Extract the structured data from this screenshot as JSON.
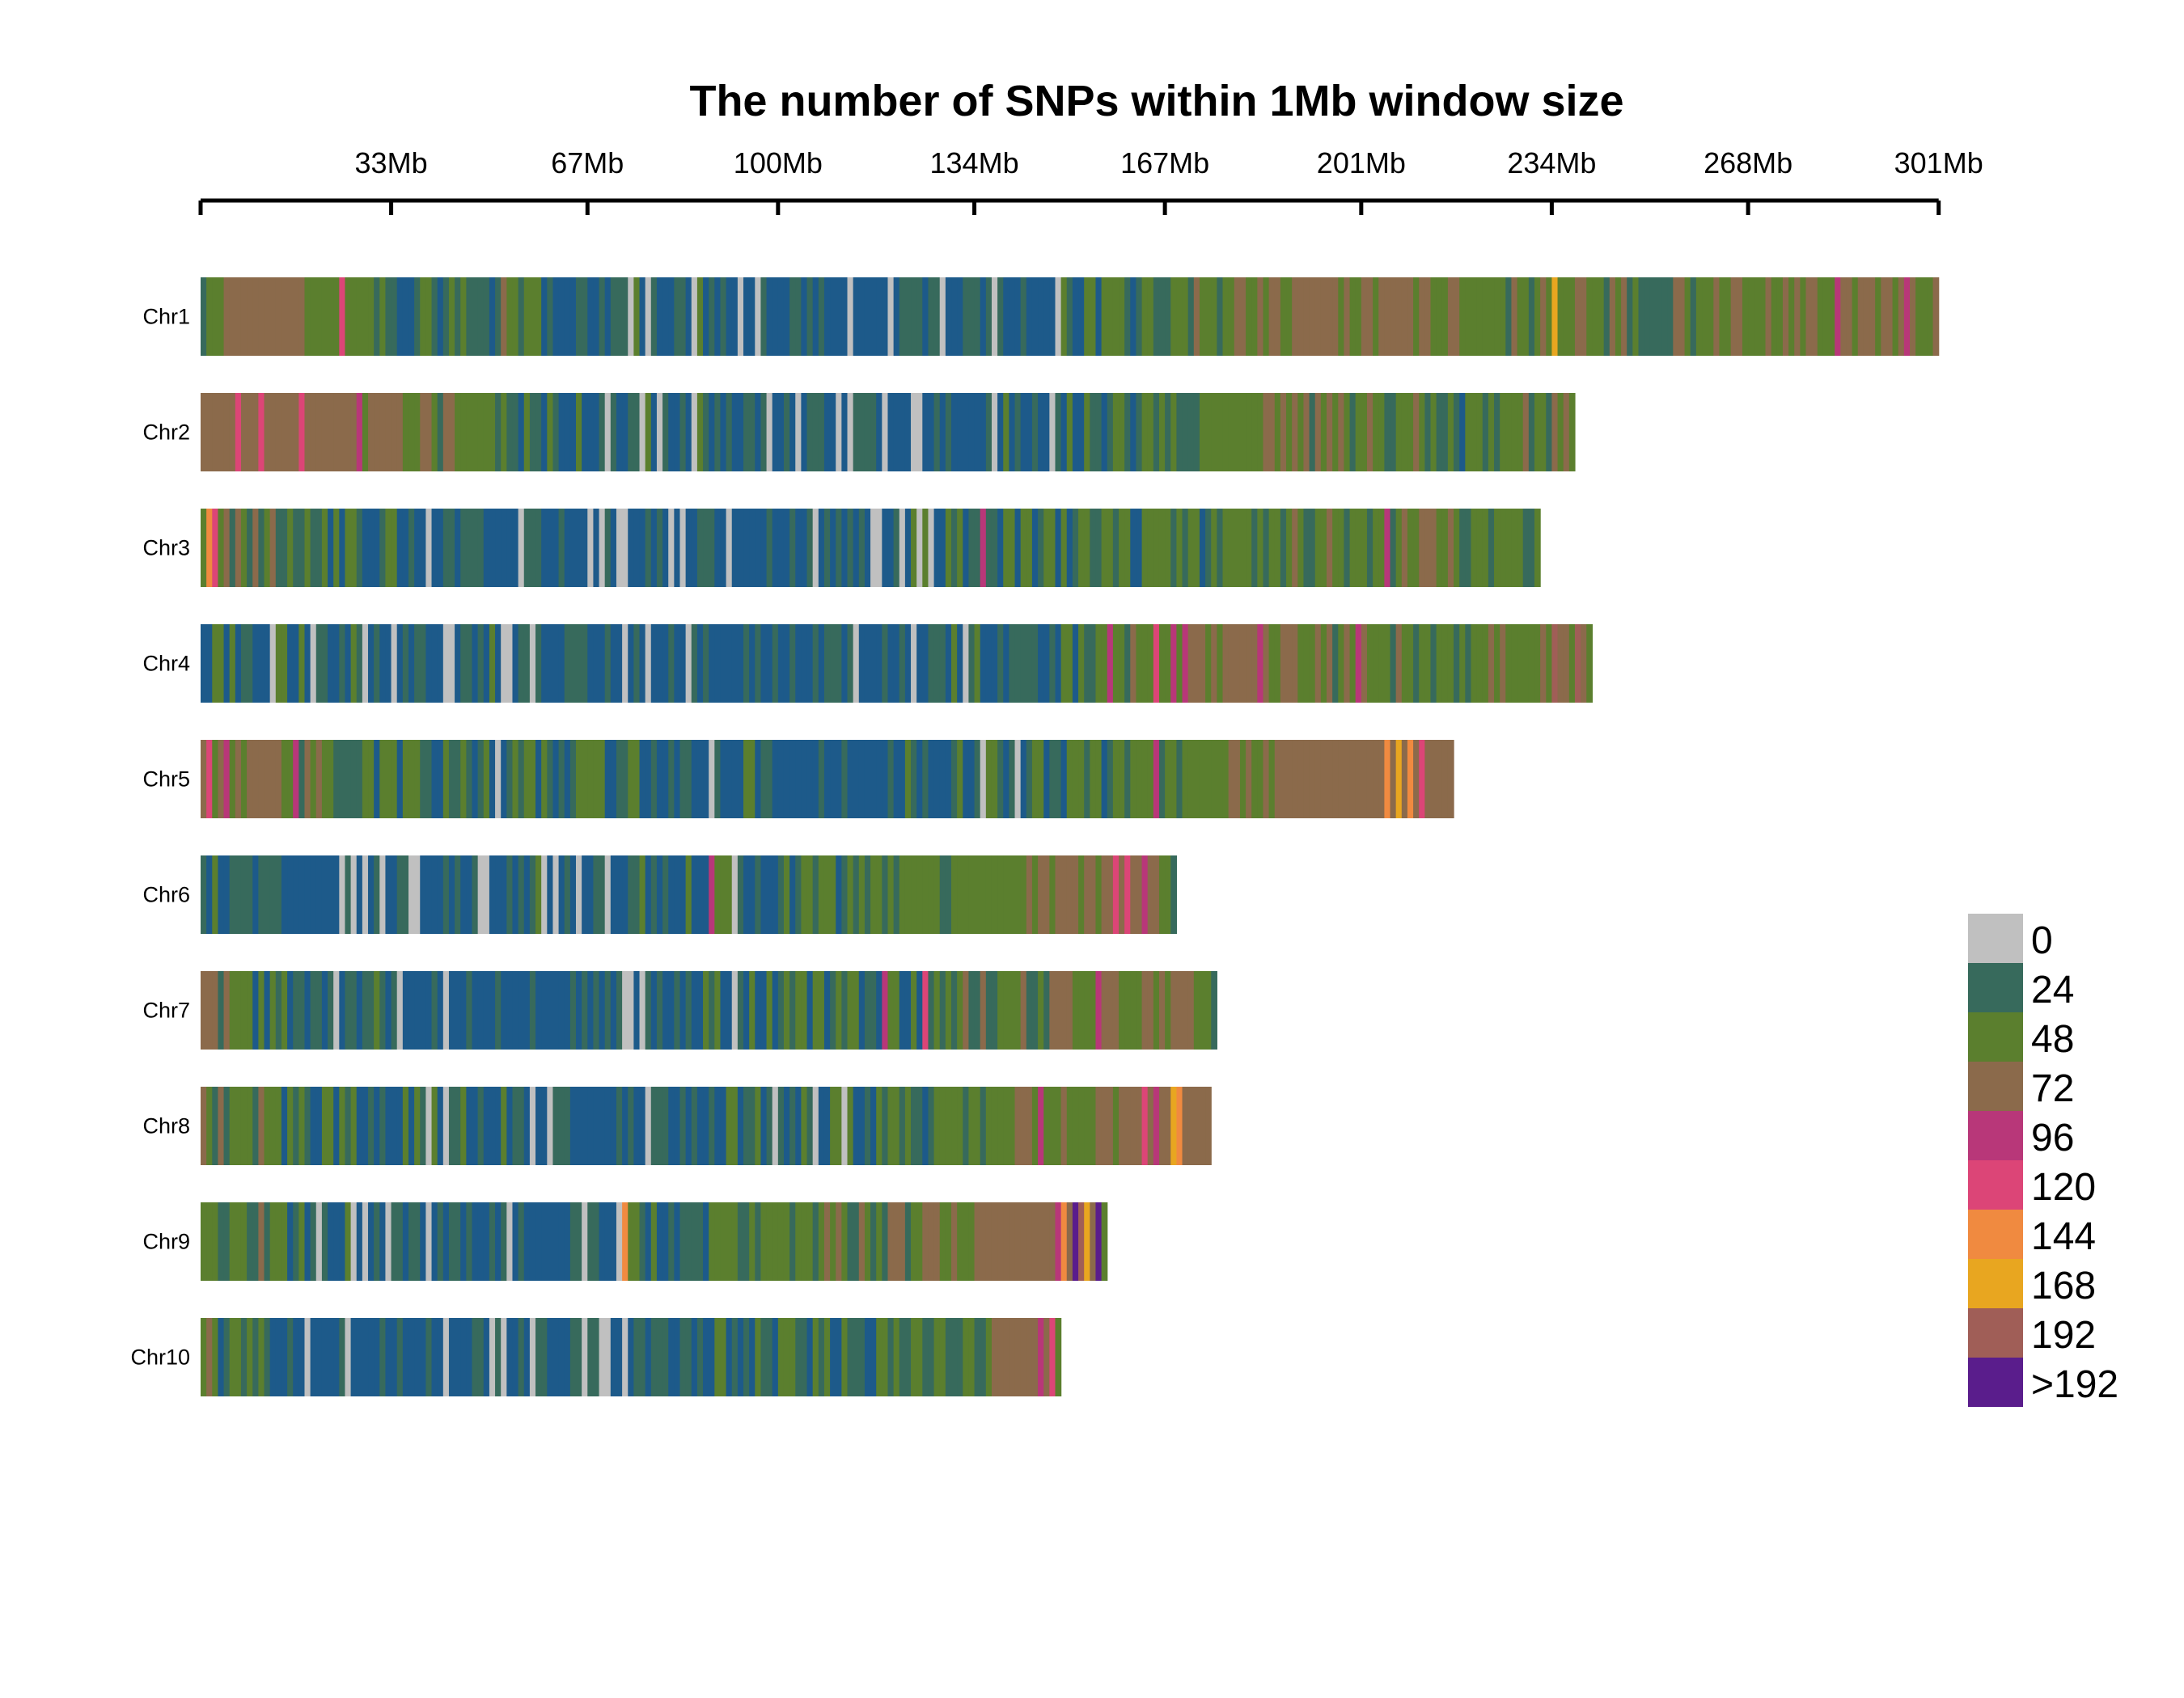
{
  "chart_data": {
    "type": "heatmap",
    "title": "The number of SNPs within 1Mb window size",
    "xlabel": "",
    "ylabel": "",
    "x_unit": "Mb",
    "xlim": [
      0,
      301
    ],
    "x_ticks": [
      {
        "value": 0,
        "label": ""
      },
      {
        "value": 33,
        "label": "33Mb"
      },
      {
        "value": 67,
        "label": "67Mb"
      },
      {
        "value": 100,
        "label": "100Mb"
      },
      {
        "value": 134,
        "label": "134Mb"
      },
      {
        "value": 167,
        "label": "167Mb"
      },
      {
        "value": 201,
        "label": "201Mb"
      },
      {
        "value": 234,
        "label": "234Mb"
      },
      {
        "value": 268,
        "label": "268Mb"
      },
      {
        "value": 301,
        "label": "301Mb"
      }
    ],
    "window_size_mb": 1,
    "legend": {
      "position": "right",
      "bins": [
        {
          "label": "0",
          "color": "#c0c0c0"
        },
        {
          "label": "24",
          "color": "#376a5c"
        },
        {
          "label": "48",
          "color": "#5b7f2e"
        },
        {
          "label": "72",
          "color": "#8b6a4b"
        },
        {
          "label": "96",
          "color": "#b83779"
        },
        {
          "label": "120",
          "color": "#dc4577"
        },
        {
          "label": "144",
          "color": "#f08a40"
        },
        {
          "label": "168",
          "color": "#e8a620"
        },
        {
          "label": "192",
          "color": "#a05e57"
        },
        {
          "label": ">192",
          "color": "#5a1d8c"
        }
      ],
      "low_density_color": "#1d5a8a"
    },
    "chromosomes": [
      {
        "name": "Chr1",
        "length_mb": 301,
        "profile": [
          [
            0,
            1
          ],
          [
            5,
            3
          ],
          [
            12,
            3.5
          ],
          [
            20,
            2.5
          ],
          [
            30,
            1.5
          ],
          [
            45,
            1
          ],
          [
            60,
            1
          ],
          [
            75,
            0.8
          ],
          [
            95,
            0.6
          ],
          [
            115,
            0.5
          ],
          [
            145,
            0.6
          ],
          [
            160,
            1.2
          ],
          [
            175,
            2
          ],
          [
            195,
            3
          ],
          [
            215,
            2.5
          ],
          [
            235,
            2
          ],
          [
            255,
            2
          ],
          [
            275,
            2.5
          ],
          [
            290,
            3
          ],
          [
            301,
            2
          ]
        ],
        "hot": [
          [
            24,
            5
          ],
          [
            52,
            3
          ],
          [
            234,
            7
          ],
          [
            283,
            4
          ],
          [
            295,
            4
          ]
        ]
      },
      {
        "name": "Chr2",
        "length_mb": 238,
        "profile": [
          [
            0,
            4
          ],
          [
            8,
            5
          ],
          [
            20,
            4
          ],
          [
            30,
            3
          ],
          [
            45,
            2
          ],
          [
            60,
            1
          ],
          [
            80,
            0.7
          ],
          [
            95,
            0.5
          ],
          [
            105,
            0.3
          ],
          [
            120,
            0.5
          ],
          [
            135,
            0.6
          ],
          [
            150,
            1
          ],
          [
            165,
            1.6
          ],
          [
            180,
            2
          ],
          [
            200,
            2
          ],
          [
            220,
            1.8
          ],
          [
            238,
            2
          ]
        ],
        "hot": [
          [
            6,
            5
          ],
          [
            10,
            5
          ],
          [
            17,
            5
          ],
          [
            27,
            4
          ],
          [
            185,
            3
          ],
          [
            193,
            3
          ]
        ]
      },
      {
        "name": "Chr3",
        "length_mb": 232,
        "profile": [
          [
            0,
            2
          ],
          [
            10,
            2
          ],
          [
            20,
            1.5
          ],
          [
            30,
            1
          ],
          [
            45,
            0.6
          ],
          [
            60,
            0.5
          ],
          [
            75,
            0.3
          ],
          [
            90,
            0.4
          ],
          [
            105,
            0.4
          ],
          [
            115,
            0.6
          ],
          [
            130,
            1
          ],
          [
            150,
            1.2
          ],
          [
            170,
            1.5
          ],
          [
            190,
            1.8
          ],
          [
            210,
            2
          ],
          [
            232,
            1.8
          ]
        ],
        "hot": [
          [
            1,
            6
          ],
          [
            2,
            5
          ],
          [
            135,
            4
          ],
          [
            205,
            4
          ]
        ]
      },
      {
        "name": "Chr4",
        "length_mb": 241,
        "profile": [
          [
            0,
            1
          ],
          [
            20,
            0.9
          ],
          [
            40,
            0.7
          ],
          [
            60,
            0.5
          ],
          [
            80,
            0.5
          ],
          [
            100,
            0.4
          ],
          [
            115,
            0.6
          ],
          [
            130,
            0.7
          ],
          [
            145,
            1
          ],
          [
            155,
            1.5
          ],
          [
            165,
            2.5
          ],
          [
            180,
            3
          ],
          [
            190,
            2.5
          ],
          [
            205,
            2
          ],
          [
            225,
            2
          ],
          [
            241,
            3
          ]
        ],
        "hot": [
          [
            157,
            4
          ],
          [
            165,
            5
          ],
          [
            168,
            4
          ],
          [
            170,
            4
          ],
          [
            183,
            4
          ],
          [
            200,
            4
          ],
          [
            234,
            8
          ],
          [
            238,
            8
          ]
        ]
      },
      {
        "name": "Chr5",
        "length_mb": 217,
        "profile": [
          [
            0,
            3
          ],
          [
            10,
            3
          ],
          [
            20,
            2
          ],
          [
            35,
            1.5
          ],
          [
            55,
            1
          ],
          [
            75,
            0.8
          ],
          [
            95,
            0.7
          ],
          [
            115,
            0.6
          ],
          [
            130,
            0.8
          ],
          [
            150,
            1
          ],
          [
            165,
            1.5
          ],
          [
            180,
            2
          ],
          [
            195,
            3
          ],
          [
            200,
            4
          ],
          [
            205,
            5
          ],
          [
            210,
            5
          ],
          [
            217,
            4
          ]
        ],
        "hot": [
          [
            1,
            5
          ],
          [
            4,
            4
          ],
          [
            16,
            4
          ],
          [
            165,
            4
          ],
          [
            205,
            6
          ],
          [
            207,
            7
          ],
          [
            209,
            6
          ],
          [
            211,
            5
          ]
        ]
      },
      {
        "name": "Chr6",
        "length_mb": 169,
        "profile": [
          [
            0,
            0.8
          ],
          [
            20,
            0.3
          ],
          [
            40,
            0.5
          ],
          [
            60,
            0.6
          ],
          [
            80,
            0.8
          ],
          [
            100,
            1.2
          ],
          [
            120,
            1.8
          ],
          [
            140,
            2.5
          ],
          [
            155,
            3.2
          ],
          [
            165,
            2.5
          ],
          [
            169,
            1.5
          ]
        ],
        "hot": [
          [
            88,
            4
          ],
          [
            158,
            5
          ],
          [
            160,
            5
          ],
          [
            163,
            4
          ]
        ]
      },
      {
        "name": "Chr7",
        "length_mb": 176,
        "profile": [
          [
            0,
            2
          ],
          [
            10,
            1.5
          ],
          [
            25,
            1
          ],
          [
            45,
            0.5
          ],
          [
            65,
            0.4
          ],
          [
            75,
            0.4
          ],
          [
            90,
            0.8
          ],
          [
            110,
            1.2
          ],
          [
            125,
            1.5
          ],
          [
            140,
            2
          ],
          [
            155,
            2.5
          ],
          [
            170,
            3
          ],
          [
            176,
            2
          ]
        ],
        "hot": [
          [
            1,
            3
          ],
          [
            2,
            3
          ],
          [
            118,
            4
          ],
          [
            125,
            5
          ],
          [
            155,
            4
          ]
        ]
      },
      {
        "name": "Chr8",
        "length_mb": 175,
        "profile": [
          [
            0,
            2
          ],
          [
            15,
            1.5
          ],
          [
            30,
            1
          ],
          [
            45,
            0.7
          ],
          [
            60,
            0.5
          ],
          [
            80,
            0.7
          ],
          [
            100,
            0.9
          ],
          [
            120,
            1.3
          ],
          [
            140,
            2
          ],
          [
            155,
            2.5
          ],
          [
            165,
            3
          ],
          [
            170,
            4
          ],
          [
            175,
            3
          ]
        ],
        "hot": [
          [
            145,
            4
          ],
          [
            163,
            5
          ],
          [
            165,
            4
          ],
          [
            168,
            7
          ],
          [
            169,
            6
          ]
        ]
      },
      {
        "name": "Chr9",
        "length_mb": 157,
        "profile": [
          [
            0,
            2
          ],
          [
            10,
            2
          ],
          [
            25,
            0.7
          ],
          [
            45,
            0.5
          ],
          [
            55,
            0.4
          ],
          [
            65,
            0.8
          ],
          [
            80,
            1.2
          ],
          [
            100,
            1.6
          ],
          [
            125,
            2.2
          ],
          [
            135,
            3
          ],
          [
            145,
            4
          ],
          [
            152,
            4
          ],
          [
            157,
            2.5
          ]
        ],
        "hot": [
          [
            73,
            6
          ],
          [
            148,
            4
          ],
          [
            149,
            6
          ],
          [
            151,
            9
          ],
          [
            152,
            8
          ],
          [
            153,
            7
          ],
          [
            155,
            9
          ]
        ]
      },
      {
        "name": "Chr10",
        "length_mb": 149,
        "profile": [
          [
            0,
            2
          ],
          [
            10,
            1
          ],
          [
            20,
            0.5
          ],
          [
            35,
            0.3
          ],
          [
            50,
            0.4
          ],
          [
            60,
            0.6
          ],
          [
            70,
            0.4
          ],
          [
            80,
            0.6
          ],
          [
            100,
            1
          ],
          [
            120,
            1.5
          ],
          [
            135,
            2
          ],
          [
            145,
            3
          ],
          [
            149,
            2
          ]
        ],
        "hot": [
          [
            145,
            4
          ],
          [
            147,
            5
          ]
        ]
      }
    ]
  }
}
